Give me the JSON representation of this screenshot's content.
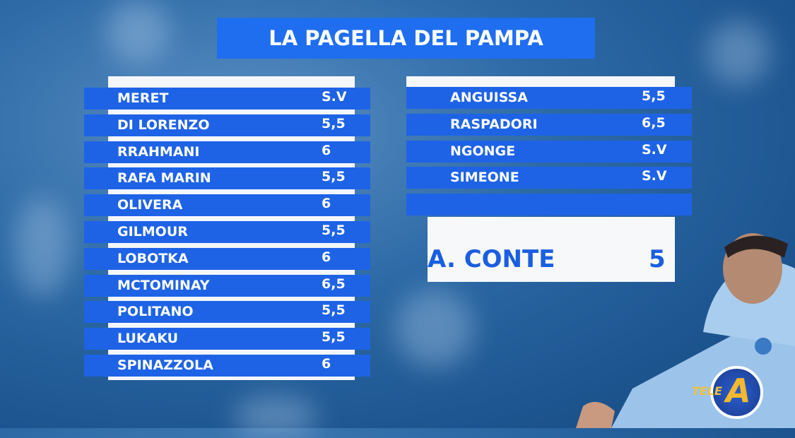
{
  "title": "LA PAGELLA DEL PAMPA",
  "left_list": [
    {
      "name": "MERET",
      "score": "S.V"
    },
    {
      "name": "DI LORENZO",
      "score": "5,5"
    },
    {
      "name": "RRAHMANI",
      "score": "6"
    },
    {
      "name": "RAFA MARIN",
      "score": "5,5"
    },
    {
      "name": "OLIVERA",
      "score": "6"
    },
    {
      "name": "GILMOUR",
      "score": "5,5"
    },
    {
      "name": "LOBOTKA",
      "score": "6"
    },
    {
      "name": "MCTOMINAY",
      "score": "6,5"
    },
    {
      "name": "POLITANO",
      "score": "5,5"
    },
    {
      "name": "LUKAKU",
      "score": "5,5"
    },
    {
      "name": "SPINAZZOLA",
      "score": "6"
    }
  ],
  "right_list": [
    {
      "name": "ANGUISSA",
      "score": "5,5"
    },
    {
      "name": "RASPADORI",
      "score": "6,5"
    },
    {
      "name": "NGONGE",
      "score": "S.V"
    },
    {
      "name": "SIMEONE",
      "score": "S.V"
    },
    {
      "name": "",
      "score": ""
    }
  ],
  "coach": {
    "name": "A. CONTE",
    "score": "5"
  },
  "logo": {
    "text": "TELE A"
  },
  "colors": {
    "row_blue": "#1e63e6",
    "title_blue": "#1f6ef0",
    "coach_text": "#1a5fe0"
  }
}
